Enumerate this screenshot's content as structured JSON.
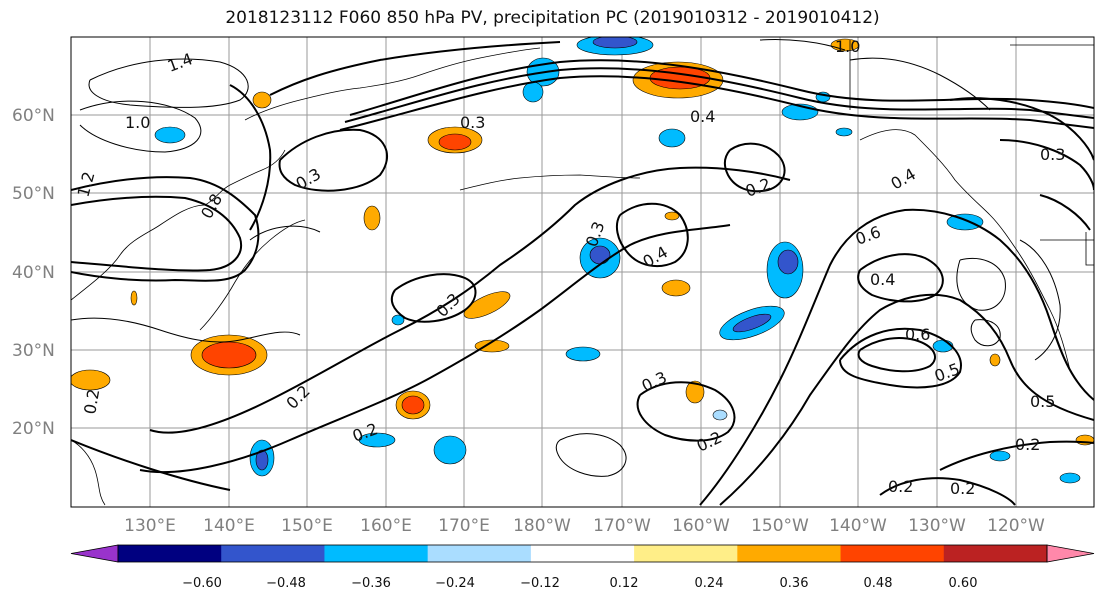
{
  "title": "2018123112 F060 850 hPa PV, precipitation PC (2019010312 - 2019010412)",
  "axes": {
    "lat_labels": [
      "60°N",
      "50°N",
      "40°N",
      "30°N",
      "20°N"
    ],
    "lon_labels": [
      "130°E",
      "140°E",
      "150°E",
      "160°E",
      "170°E",
      "180°W",
      "170°W",
      "160°W",
      "150°W",
      "140°W",
      "130°W",
      "120°W"
    ]
  },
  "colorbar": {
    "ticks": [
      "−0.60",
      "−0.48",
      "−0.36",
      "−0.24",
      "−0.12",
      "0.12",
      "0.24",
      "0.36",
      "0.48",
      "0.60"
    ],
    "colors": [
      "#9933cc",
      "#000080",
      "#3355cc",
      "#00bbff",
      "#aaddff",
      "#ffffff",
      "#ffee88",
      "#ffaa00",
      "#ff4400",
      "#bb2222",
      "#ff88aa"
    ]
  },
  "contour_labels": [
    "1.4",
    "1.0",
    "1.2",
    "0.8",
    "0.3",
    "0.2",
    "0.4",
    "0.6",
    "0.5",
    "0.2",
    "0.3",
    "0.3",
    "0.2",
    "0.2",
    "0.2",
    "0.4",
    "0.6",
    "0.5",
    "0.3",
    "0.2",
    "0.2",
    "0.2",
    "1.0",
    "0.3",
    "0.4",
    "0.4",
    "0.3"
  ],
  "colors": {
    "contour": "#000000",
    "grid": "#999999",
    "coast": "#000000",
    "tick_text": "#808080"
  }
}
